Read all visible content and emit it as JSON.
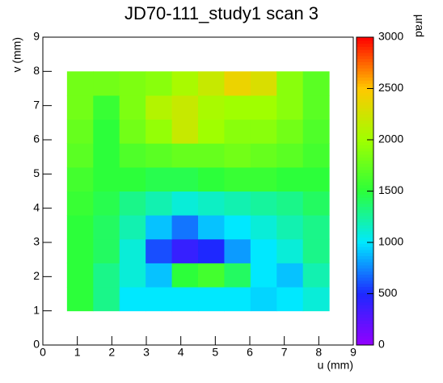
{
  "chart_data": {
    "type": "heatmap",
    "title": "JD70-111_study1 scan 3",
    "x_label": "u (mm)",
    "y_label": "v (mm)",
    "colorbar_label": "µrad",
    "x_edges": [
      0.7,
      1.46,
      2.22,
      2.98,
      3.74,
      4.5,
      5.26,
      6.02,
      6.78,
      7.54,
      8.3
    ],
    "y_edges": [
      1,
      1.7,
      2.4,
      3.1,
      3.8,
      4.5,
      5.2,
      5.9,
      6.6,
      7.3,
      8
    ],
    "values": [
      [
        1500,
        1300,
        1000,
        1000,
        1000,
        1000,
        1000,
        950,
        1000,
        1100
      ],
      [
        1500,
        1300,
        1100,
        900,
        1500,
        1600,
        1400,
        1000,
        900,
        1200
      ],
      [
        1500,
        1400,
        1100,
        600,
        400,
        500,
        800,
        1000,
        1100,
        1300
      ],
      [
        1500,
        1400,
        1200,
        900,
        700,
        900,
        1000,
        1100,
        1200,
        1300
      ],
      [
        1550,
        1450,
        1300,
        1200,
        1100,
        1150,
        1200,
        1250,
        1300,
        1400
      ],
      [
        1600,
        1500,
        1500,
        1450,
        1450,
        1500,
        1550,
        1550,
        1500,
        1500
      ],
      [
        1700,
        1500,
        1650,
        1700,
        1750,
        1750,
        1800,
        1750,
        1700,
        1600
      ],
      [
        1750,
        1500,
        1800,
        1950,
        2200,
        2000,
        1900,
        1900,
        1800,
        1650
      ],
      [
        1800,
        1550,
        1850,
        2100,
        2200,
        2050,
        2000,
        2000,
        1900,
        1700
      ],
      [
        1800,
        1800,
        1850,
        1900,
        2050,
        2200,
        2400,
        2300,
        1900,
        1700
      ]
    ],
    "colorscale": [
      "#9400ff",
      "#1e28ff",
      "#00e8ff",
      "#2cff3a",
      "#a0ff00",
      "#ffc800",
      "#ff0000"
    ],
    "xlim": [
      0,
      9
    ],
    "xticks": [
      0,
      1,
      2,
      3,
      4,
      5,
      6,
      7,
      8,
      9
    ],
    "ylim": [
      0,
      9
    ],
    "yticks": [
      0,
      1,
      2,
      3,
      4,
      5,
      6,
      7,
      8,
      9
    ],
    "zlim": [
      0,
      3000
    ],
    "zticks": [
      0,
      500,
      1000,
      1500,
      2000,
      2500,
      3000
    ]
  }
}
